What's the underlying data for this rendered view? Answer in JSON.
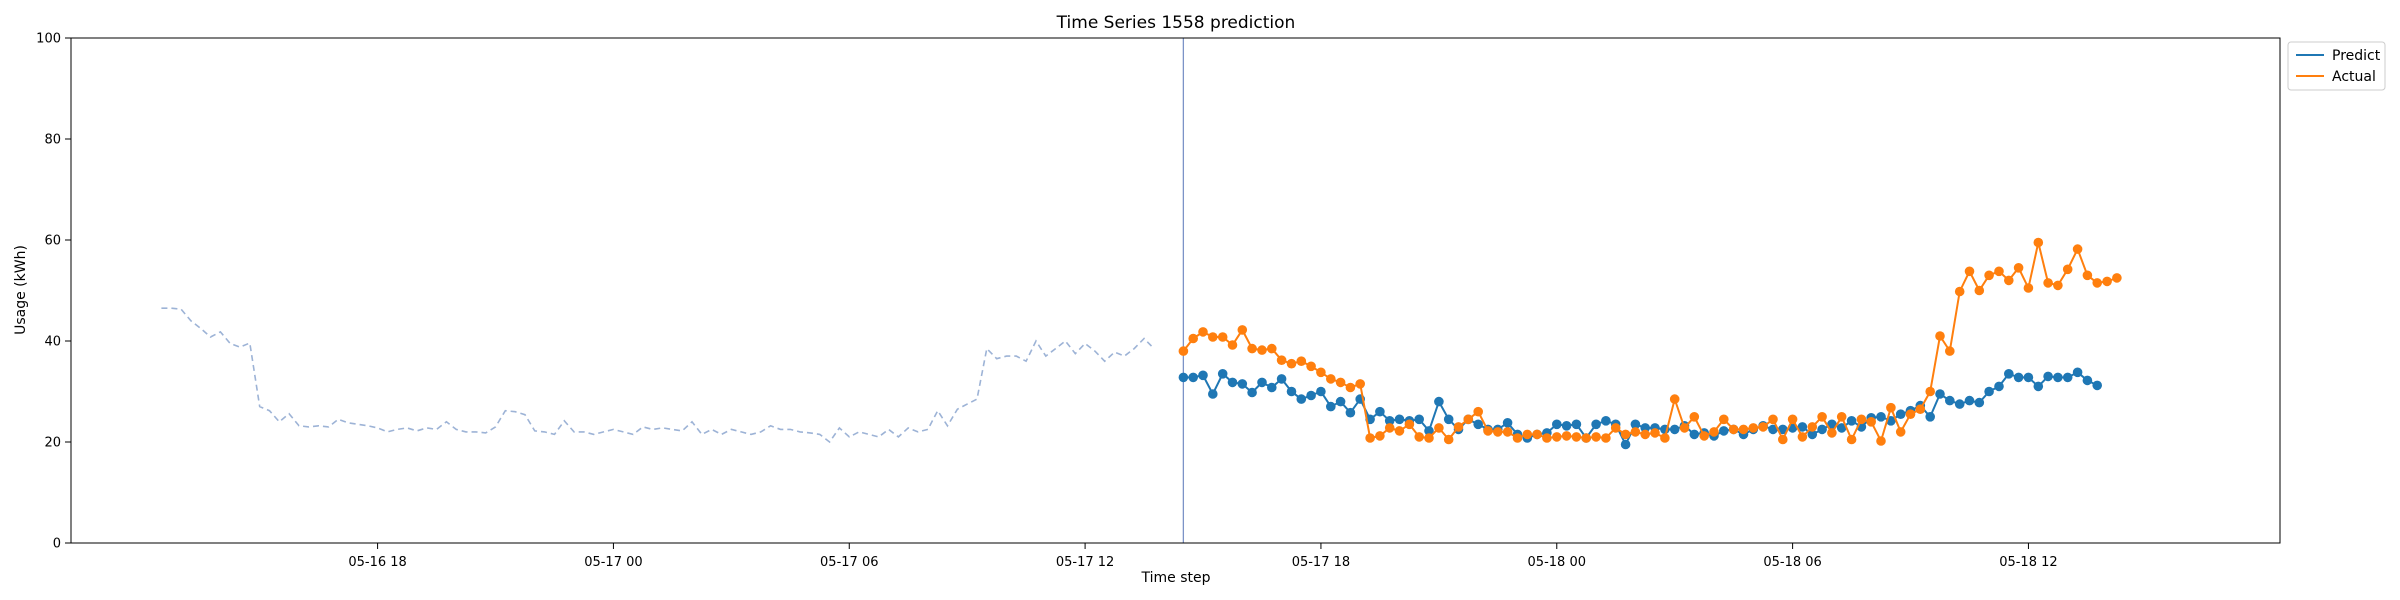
{
  "chart_data": {
    "type": "line",
    "title": "Time Series 1558 prediction",
    "xlabel": "Time step",
    "ylabel": "Usage (kWh)",
    "ylim": [
      0,
      100
    ],
    "yticks": [
      0,
      20,
      40,
      60,
      80,
      100
    ],
    "xlim": [
      "2024-05-16 10:12",
      "2024-05-18 18:24"
    ],
    "xticks": [
      {
        "label": "05-16 18",
        "t": "2024-05-16 18:00"
      },
      {
        "label": "05-17 00",
        "t": "2024-05-17 00:00"
      },
      {
        "label": "05-17 06",
        "t": "2024-05-17 06:00"
      },
      {
        "label": "05-17 12",
        "t": "2024-05-17 12:00"
      },
      {
        "label": "05-17 18",
        "t": "2024-05-17 18:00"
      },
      {
        "label": "05-18 00",
        "t": "2024-05-18 00:00"
      },
      {
        "label": "05-18 06",
        "t": "2024-05-18 06:00"
      },
      {
        "label": "05-18 12",
        "t": "2024-05-18 12:00"
      }
    ],
    "interval_minutes": 15,
    "history": {
      "start": "2024-05-16 12:30",
      "color": "#9db3d6",
      "style": "dashed",
      "values": [
        46.5,
        46.5,
        46.3,
        44.0,
        42.5,
        40.8,
        41.8,
        39.5,
        38.8,
        39.6,
        27.0,
        26.2,
        24.0,
        25.6,
        23.2,
        23.0,
        23.2,
        23.0,
        24.5,
        23.8,
        23.5,
        23.2,
        22.8,
        22.0,
        22.5,
        22.8,
        22.2,
        22.8,
        22.5,
        24.0,
        22.5,
        22.0,
        22.0,
        21.8,
        23.0,
        26.2,
        26.0,
        25.4,
        22.2,
        22.0,
        21.5,
        24.2,
        22.0,
        22.0,
        21.5,
        22.0,
        22.5,
        22.0,
        21.5,
        23.0,
        22.5,
        22.8,
        22.5,
        22.2,
        24.0,
        21.5,
        22.5,
        21.5,
        22.5,
        22.0,
        21.5,
        22.0,
        23.2,
        22.5,
        22.5,
        22.0,
        21.8,
        21.5,
        20.0,
        22.8,
        21.0,
        22.0,
        21.5,
        21.0,
        22.5,
        21.0,
        22.8,
        22.0,
        22.5,
        26.2,
        23.2,
        26.5,
        27.5,
        28.5,
        38.5,
        36.5,
        37.0,
        37.0,
        36.0,
        40.0,
        37.0,
        38.5,
        40.0,
        37.5,
        39.5,
        38.0,
        36.0,
        37.8,
        37.0,
        38.5,
        40.5,
        38.5
      ]
    },
    "forecast_start": "2024-05-17 14:30",
    "vline_color": "#7c93c7",
    "series": [
      {
        "name": "Predict",
        "color": "#1f77b4",
        "start": "2024-05-17 14:30",
        "values": [
          32.8,
          32.8,
          33.2,
          29.5,
          33.5,
          31.8,
          31.5,
          29.8,
          31.8,
          30.8,
          32.5,
          30.0,
          28.5,
          29.2,
          30.0,
          27.0,
          28.0,
          25.8,
          28.5,
          24.5,
          26.0,
          24.2,
          24.5,
          24.2,
          24.5,
          22.2,
          28.0,
          24.5,
          22.5,
          24.5,
          23.5,
          22.5,
          22.5,
          23.8,
          21.5,
          20.8,
          21.5,
          21.8,
          23.5,
          23.2,
          23.5,
          20.8,
          23.5,
          24.2,
          23.5,
          19.5,
          23.5,
          22.8,
          22.8,
          22.5,
          22.5,
          23.2,
          21.5,
          21.8,
          21.2,
          22.2,
          22.5,
          21.5,
          22.5,
          23.2,
          22.5,
          22.5,
          22.8,
          23.0,
          21.5,
          22.5,
          23.5,
          22.8,
          24.2,
          23.0,
          24.8,
          25.0,
          24.2,
          25.5,
          26.2,
          27.2,
          25.0,
          29.5,
          28.2,
          27.5,
          28.2,
          27.8,
          30.0,
          31.0,
          33.5,
          32.8,
          32.8,
          31.0,
          33.0,
          32.8,
          32.8,
          33.8,
          32.2,
          31.2
        ]
      },
      {
        "name": "Actual",
        "color": "#ff7f0e",
        "start": "2024-05-17 14:30",
        "values": [
          38.0,
          40.5,
          41.8,
          40.8,
          40.8,
          39.2,
          42.2,
          38.5,
          38.2,
          38.5,
          36.2,
          35.5,
          36.0,
          35.0,
          33.8,
          32.5,
          31.8,
          30.8,
          31.5,
          20.8,
          21.2,
          22.8,
          22.2,
          23.5,
          21.0,
          20.8,
          22.8,
          20.5,
          23.0,
          24.5,
          26.0,
          22.2,
          22.0,
          22.0,
          20.8,
          21.5,
          21.5,
          20.8,
          21.0,
          21.2,
          21.0,
          20.8,
          21.0,
          20.8,
          22.8,
          21.5,
          22.0,
          21.5,
          21.8,
          20.8,
          28.5,
          22.8,
          25.0,
          21.2,
          22.0,
          24.5,
          22.5,
          22.5,
          22.8,
          23.0,
          24.5,
          20.5,
          24.5,
          21.0,
          23.0,
          25.0,
          21.8,
          25.0,
          20.5,
          24.5,
          24.0,
          20.2,
          26.8,
          22.0,
          25.5,
          26.5,
          30.0,
          41.0,
          38.0,
          49.8,
          53.8,
          50.0,
          53.0,
          53.8,
          52.0,
          54.5,
          50.5,
          59.5,
          51.5,
          51.0,
          54.2,
          58.2,
          53.0,
          51.5,
          51.8,
          52.5
        ]
      }
    ],
    "legend": {
      "position": "upper-right-outside",
      "entries": [
        "Predict",
        "Actual"
      ]
    },
    "grid": false
  }
}
